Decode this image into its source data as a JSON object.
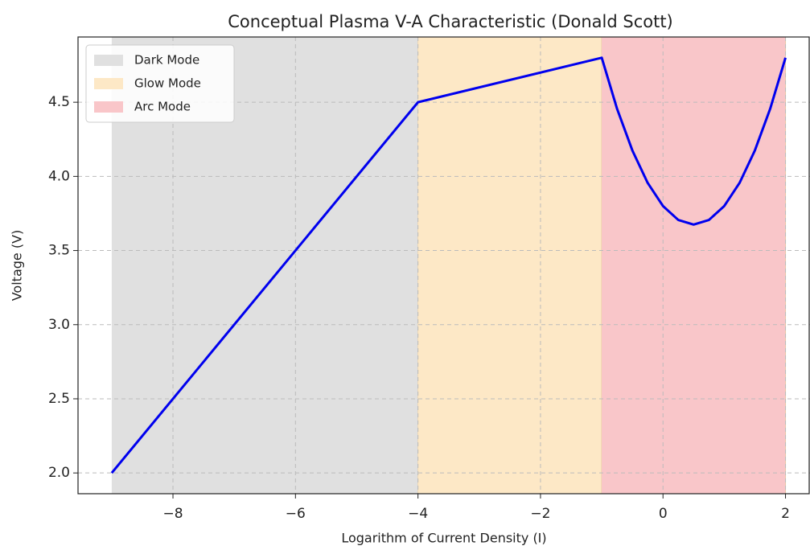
{
  "chart_data": {
    "type": "line",
    "title": "Conceptual Plasma V-A Characteristic (Donald Scott)",
    "xlabel": "Logarithm of Current Density (I)",
    "ylabel": "Voltage (V)",
    "xlim": [
      -9.55,
      2.4
    ],
    "ylim": [
      1.86,
      4.94
    ],
    "xticks": [
      {
        "value": -8,
        "label": "−8"
      },
      {
        "value": -6,
        "label": "−6"
      },
      {
        "value": -4,
        "label": "−4"
      },
      {
        "value": -2,
        "label": "−2"
      },
      0,
      2
    ],
    "yticks": [
      {
        "value": 2,
        "label": "2.0"
      },
      2.5,
      {
        "value": 3,
        "label": "3.0"
      },
      3.5,
      {
        "value": 4,
        "label": "4.0"
      },
      4.5
    ],
    "grid": true,
    "legend": "upper-left",
    "regions": [
      {
        "name": "Dark Mode",
        "start": -9,
        "end": -4,
        "color": "#e0e0e0"
      },
      {
        "name": "Glow Mode",
        "start": -4,
        "end": -1,
        "color": "#fde8c6"
      },
      {
        "name": "Arc Mode",
        "start": -1,
        "end": 2,
        "color": "#f9c6c9"
      }
    ],
    "series": [
      {
        "color": "#0000ee",
        "x": [
          -9,
          -4,
          -1,
          -0.75,
          -0.5,
          -0.25,
          0,
          0.25,
          0.5,
          0.75,
          1,
          1.25,
          1.5,
          1.75,
          2
        ],
        "values": [
          2,
          4.5,
          4.8,
          4.456,
          4.175,
          3.956,
          3.8,
          3.706,
          3.675,
          3.706,
          3.8,
          3.956,
          4.175,
          4.456,
          4.8
        ]
      }
    ]
  }
}
